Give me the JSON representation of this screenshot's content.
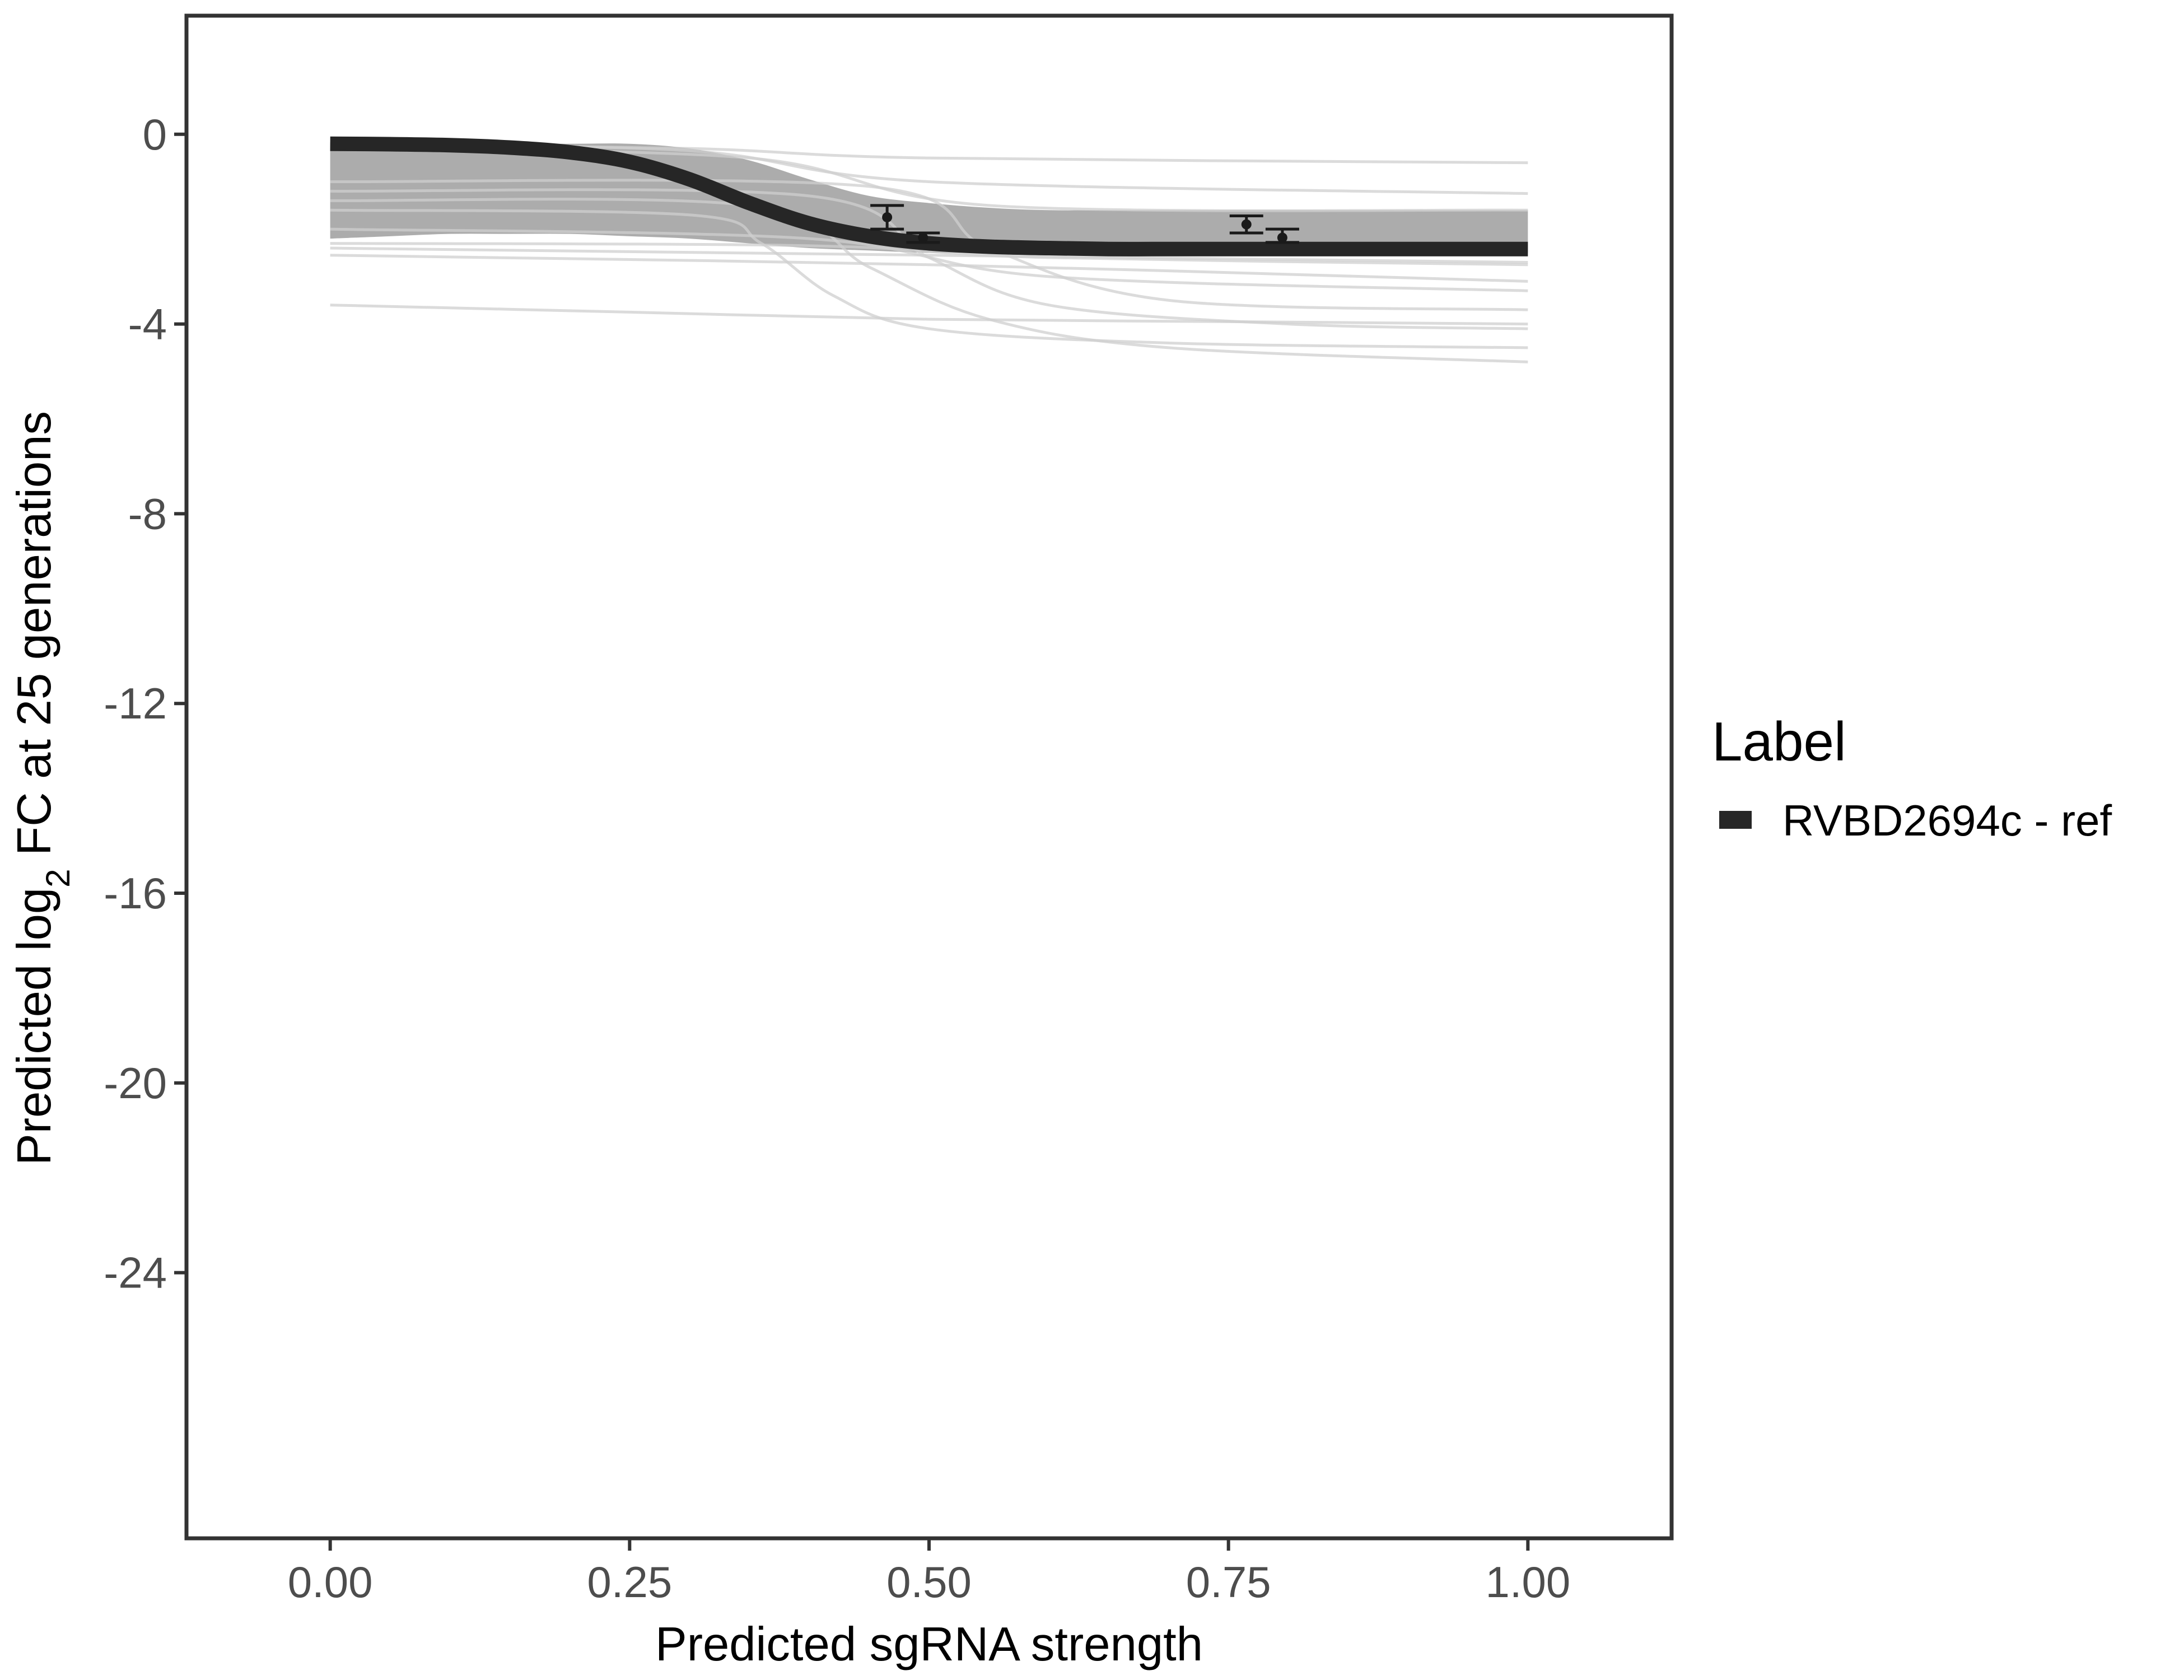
{
  "chart_data": {
    "type": "line",
    "title": "",
    "xlabel": "Predicted sgRNA strength",
    "ylabel_prefix": "Predicted  log",
    "ylabel_subscript": "2",
    "ylabel_suffix": " FC at 25 generations",
    "xlim": [
      -0.12,
      1.12
    ],
    "ylim": [
      -29.6,
      2.5
    ],
    "x_ticks": [
      0.0,
      0.25,
      0.5,
      0.75,
      1.0
    ],
    "x_tick_labels": [
      "0.00",
      "0.25",
      "0.50",
      "0.75",
      "1.00"
    ],
    "y_ticks": [
      0,
      -4,
      -8,
      -12,
      -16,
      -20,
      -24
    ],
    "y_tick_labels": [
      "0",
      "-4",
      "-8",
      "-12",
      "-16",
      "-20",
      "-24"
    ],
    "grid": false,
    "legend": {
      "title": "Label",
      "placement": "right",
      "entries": [
        {
          "label": "RVBD2694c - ref",
          "color": "#262626"
        }
      ]
    },
    "series": [
      {
        "name": "RVBD2694c - ref",
        "color": "#262626",
        "x": [
          0.0,
          0.05,
          0.1,
          0.15,
          0.2,
          0.25,
          0.3,
          0.35,
          0.4,
          0.45,
          0.5,
          0.55,
          0.6,
          0.65,
          0.7,
          0.75,
          0.8,
          0.85,
          0.9,
          0.95,
          1.0
        ],
        "y": [
          -0.2,
          -0.21,
          -0.23,
          -0.28,
          -0.38,
          -0.58,
          -0.95,
          -1.45,
          -1.88,
          -2.15,
          -2.3,
          -2.37,
          -2.4,
          -2.42,
          -2.42,
          -2.42,
          -2.42,
          -2.42,
          -2.42,
          -2.42,
          -2.42
        ]
      }
    ],
    "posterior_band": {
      "color": "#9e9e9e",
      "x": [
        0.0,
        0.05,
        0.1,
        0.15,
        0.2,
        0.25,
        0.3,
        0.35,
        0.4,
        0.45,
        0.5,
        0.55,
        0.6,
        0.65,
        0.7,
        0.75,
        0.8,
        0.85,
        0.9,
        0.95,
        1.0
      ],
      "lower": [
        -2.2,
        -2.15,
        -2.1,
        -2.1,
        -2.1,
        -2.15,
        -2.2,
        -2.3,
        -2.4,
        -2.45,
        -2.5,
        -2.5,
        -2.5,
        -2.5,
        -2.5,
        -2.5,
        -2.5,
        -2.5,
        -2.5,
        -2.5,
        -2.5
      ],
      "upper": [
        -0.2,
        -0.2,
        -0.2,
        -0.2,
        -0.2,
        -0.2,
        -0.3,
        -0.55,
        -0.95,
        -1.3,
        -1.45,
        -1.55,
        -1.6,
        -1.6,
        -1.6,
        -1.6,
        -1.6,
        -1.6,
        -1.6,
        -1.6,
        -1.6
      ]
    },
    "faint_curves": [
      {
        "x": [
          0.0,
          0.25,
          0.5,
          0.75,
          1.0
        ],
        "y": [
          -3.6,
          -3.75,
          -3.9,
          -3.95,
          -4.0
        ]
      },
      {
        "x": [
          0.0,
          0.3,
          0.36,
          0.42,
          0.5,
          0.7,
          1.0
        ],
        "y": [
          -1.6,
          -1.7,
          -2.3,
          -3.4,
          -4.1,
          -4.4,
          -4.5
        ]
      },
      {
        "x": [
          0.0,
          0.35,
          0.45,
          0.55,
          0.7,
          1.0
        ],
        "y": [
          -1.4,
          -1.5,
          -2.8,
          -3.9,
          -4.5,
          -4.8
        ]
      },
      {
        "x": [
          0.0,
          0.4,
          0.5,
          0.6,
          0.8,
          1.0
        ],
        "y": [
          -1.2,
          -1.3,
          -2.6,
          -3.6,
          -4.0,
          -4.1
        ]
      },
      {
        "x": [
          0.0,
          0.45,
          0.55,
          0.7,
          1.0
        ],
        "y": [
          -1.0,
          -1.1,
          -2.4,
          -3.5,
          -3.7
        ]
      },
      {
        "x": [
          0.0,
          0.5,
          1.0
        ],
        "y": [
          -2.4,
          -2.55,
          -2.7
        ]
      },
      {
        "x": [
          0.0,
          0.5,
          1.0
        ],
        "y": [
          -2.55,
          -2.75,
          -3.1
        ]
      },
      {
        "x": [
          0.0,
          0.4,
          0.6,
          1.0
        ],
        "y": [
          -2.0,
          -2.2,
          -3.0,
          -3.3
        ]
      },
      {
        "x": [
          0.0,
          0.3,
          0.5,
          1.0
        ],
        "y": [
          -0.2,
          -0.3,
          -0.5,
          -0.6
        ]
      },
      {
        "x": [
          0.0,
          0.3,
          0.5,
          1.0
        ],
        "y": [
          -0.2,
          -0.35,
          -1.0,
          -1.25
        ]
      },
      {
        "x": [
          0.0,
          0.35,
          0.55,
          1.0
        ],
        "y": [
          -0.3,
          -0.5,
          -1.5,
          -1.6
        ]
      },
      {
        "x": [
          0.0,
          0.4,
          0.6,
          1.0
        ],
        "y": [
          -2.3,
          -2.35,
          -2.6,
          -2.75
        ]
      }
    ],
    "points": [
      {
        "x": 0.465,
        "y": -1.75,
        "err_low": -2.0,
        "err_high": -1.5
      },
      {
        "x": 0.495,
        "y": -2.18,
        "err_low": -2.28,
        "err_high": -2.08
      },
      {
        "x": 0.765,
        "y": -1.9,
        "err_low": -2.08,
        "err_high": -1.72
      },
      {
        "x": 0.795,
        "y": -2.18,
        "err_low": -2.28,
        "err_high": -2.0
      }
    ]
  }
}
